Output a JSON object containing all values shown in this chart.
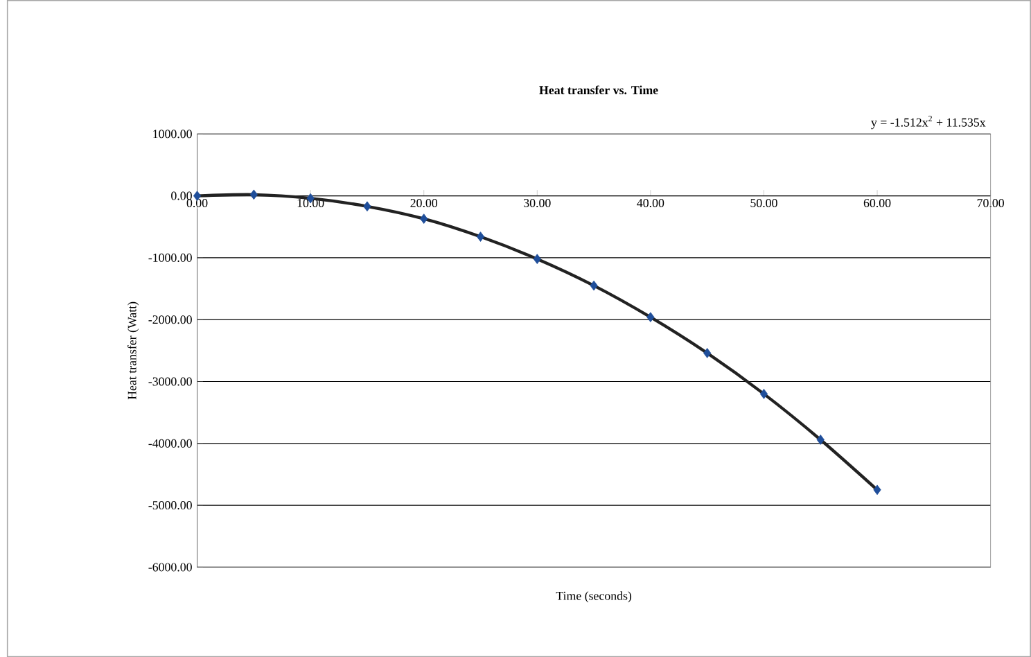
{
  "chart_data": {
    "type": "scatter",
    "title": "Heat transfer vs. Time",
    "xlabel": "Time (seconds)",
    "ylabel": "Heat transfer (Watt)",
    "annotations": [
      "y = -1.512x$^{2}$ + 11.535x"
    ],
    "x": [
      0,
      5,
      10,
      15,
      20,
      25,
      30,
      35,
      40,
      45,
      50,
      55,
      60
    ],
    "series": [
      {
        "color": "#1f4e9a",
        "marker": "diamond",
        "values": [
          0,
          20,
          -40,
          -170,
          -370,
          -660,
          -1020,
          -1450,
          -1960,
          -2540,
          -3200,
          -3940,
          -4750
        ]
      },
      {
        "type": "line",
        "color": "#222222",
        "marker": "none",
        "x": [
          0,
          5,
          10,
          15,
          20,
          25,
          30,
          35,
          40,
          45,
          50,
          55,
          60
        ],
        "values": [
          0,
          20,
          -40,
          -170,
          -370,
          -660,
          -1020,
          -1450,
          -1960,
          -2540,
          -3200,
          -3940,
          -4750
        ]
      }
    ],
    "xlim": [
      0,
      70
    ],
    "ylim": [
      -6000,
      1000
    ],
    "xticks": [
      {
        "value": 0,
        "label": "0.00"
      },
      {
        "value": 10,
        "label": "10.00"
      },
      {
        "value": 20,
        "label": "20.00"
      },
      {
        "value": 30,
        "label": "30.00"
      },
      {
        "value": 40,
        "label": "40.00"
      },
      {
        "value": 50,
        "label": "50.00"
      },
      {
        "value": 60,
        "label": "60.00"
      },
      {
        "value": 70,
        "label": "70.00"
      }
    ],
    "yticks": [
      {
        "value": -6000,
        "label": "-6000.00"
      },
      {
        "value": -5000,
        "label": "-5000.00"
      },
      {
        "value": -4000,
        "label": "-4000.00"
      },
      {
        "value": -3000,
        "label": "-3000.00"
      },
      {
        "value": -2000,
        "label": "-2000.00"
      },
      {
        "value": -1000,
        "label": "-1000.00"
      },
      {
        "value": 0,
        "label": "0.00"
      },
      {
        "value": 1000,
        "label": "1000.00"
      }
    ],
    "grid": "y"
  }
}
